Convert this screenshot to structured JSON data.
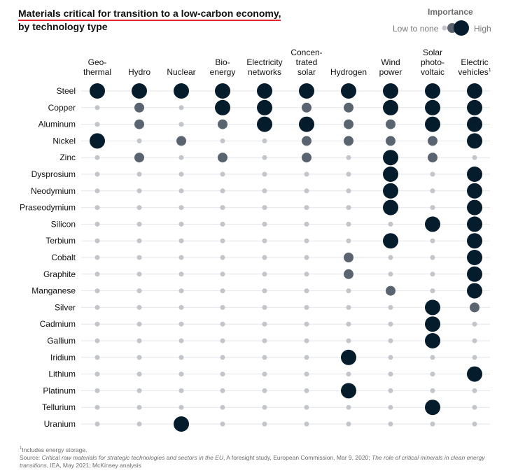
{
  "title_line1": "Materials critical for transition to a low-carbon economy,",
  "title_line2": "by technology type",
  "legend": {
    "title": "Importance",
    "low_label": "Low to none",
    "high_label": "High"
  },
  "footnote_line1": "Includes energy storage.",
  "footnote_marker": "1",
  "source_label": "Source: ",
  "source_part1": "Critical raw materials for strategic technologies and sectors in the EU",
  "source_part2": ", A foresight study, European Commission, Mar 9, 2020; ",
  "source_part3": "The role of critical minerals in clean energy transitions",
  "source_part4": ", IEA, May 2021; McKinsey analysis",
  "colors": {
    "high": "#051c2c",
    "medium": "#5a6470",
    "low": "#c2c5c9",
    "grid": "#e4e6e8",
    "accent": "#e0262d"
  },
  "chart_data": {
    "type": "table",
    "value_legend": {
      "0": "Low to none",
      "1": "Medium",
      "2": "High"
    },
    "columns": [
      {
        "lines": [
          "Geo-",
          "thermal"
        ]
      },
      {
        "lines": [
          "Hydro"
        ]
      },
      {
        "lines": [
          "Nuclear"
        ]
      },
      {
        "lines": [
          "Bio-",
          "energy"
        ]
      },
      {
        "lines": [
          "Electricity",
          "networks"
        ]
      },
      {
        "lines": [
          "Concen-",
          "trated",
          "solar"
        ]
      },
      {
        "lines": [
          "Hydrogen"
        ]
      },
      {
        "lines": [
          "Wind",
          "power"
        ]
      },
      {
        "lines": [
          "Solar",
          "photo-",
          "voltaic"
        ]
      },
      {
        "lines": [
          "Electric",
          "vehicles"
        ],
        "superscript": "1"
      }
    ],
    "rows": [
      {
        "material": "Steel",
        "values": [
          2,
          2,
          2,
          2,
          2,
          2,
          2,
          2,
          2,
          2
        ]
      },
      {
        "material": "Copper",
        "values": [
          0,
          1,
          0,
          2,
          2,
          1,
          1,
          2,
          2,
          2
        ]
      },
      {
        "material": "Aluminum",
        "values": [
          0,
          1,
          0,
          1,
          2,
          2,
          1,
          1,
          2,
          2
        ]
      },
      {
        "material": "Nickel",
        "values": [
          2,
          0,
          1,
          0,
          0,
          1,
          1,
          1,
          1,
          2
        ]
      },
      {
        "material": "Zinc",
        "values": [
          0,
          1,
          0,
          1,
          0,
          1,
          0,
          2,
          1,
          0
        ]
      },
      {
        "material": "Dysprosium",
        "values": [
          0,
          0,
          0,
          0,
          0,
          0,
          0,
          2,
          0,
          2
        ]
      },
      {
        "material": "Neodymium",
        "values": [
          0,
          0,
          0,
          0,
          0,
          0,
          0,
          2,
          0,
          2
        ]
      },
      {
        "material": "Praseodymium",
        "values": [
          0,
          0,
          0,
          0,
          0,
          0,
          0,
          2,
          0,
          2
        ]
      },
      {
        "material": "Silicon",
        "values": [
          0,
          0,
          0,
          0,
          0,
          0,
          0,
          0,
          2,
          2
        ]
      },
      {
        "material": "Terbium",
        "values": [
          0,
          0,
          0,
          0,
          0,
          0,
          0,
          2,
          0,
          2
        ]
      },
      {
        "material": "Cobalt",
        "values": [
          0,
          0,
          0,
          0,
          0,
          0,
          1,
          0,
          0,
          2
        ]
      },
      {
        "material": "Graphite",
        "values": [
          0,
          0,
          0,
          0,
          0,
          0,
          1,
          0,
          0,
          2
        ]
      },
      {
        "material": "Manganese",
        "values": [
          0,
          0,
          0,
          0,
          0,
          0,
          0,
          1,
          0,
          2
        ]
      },
      {
        "material": "Silver",
        "values": [
          0,
          0,
          0,
          0,
          0,
          0,
          0,
          0,
          2,
          1
        ]
      },
      {
        "material": "Cadmium",
        "values": [
          0,
          0,
          0,
          0,
          0,
          0,
          0,
          0,
          2,
          0
        ]
      },
      {
        "material": "Gallium",
        "values": [
          0,
          0,
          0,
          0,
          0,
          0,
          0,
          0,
          2,
          0
        ]
      },
      {
        "material": "Iridium",
        "values": [
          0,
          0,
          0,
          0,
          0,
          0,
          2,
          0,
          0,
          0
        ]
      },
      {
        "material": "Lithium",
        "values": [
          0,
          0,
          0,
          0,
          0,
          0,
          0,
          0,
          0,
          2
        ]
      },
      {
        "material": "Platinum",
        "values": [
          0,
          0,
          0,
          0,
          0,
          0,
          2,
          0,
          0,
          0
        ]
      },
      {
        "material": "Tellurium",
        "values": [
          0,
          0,
          0,
          0,
          0,
          0,
          0,
          0,
          2,
          0
        ]
      },
      {
        "material": "Uranium",
        "values": [
          0,
          0,
          2,
          0,
          0,
          0,
          0,
          0,
          0,
          0
        ]
      }
    ]
  }
}
